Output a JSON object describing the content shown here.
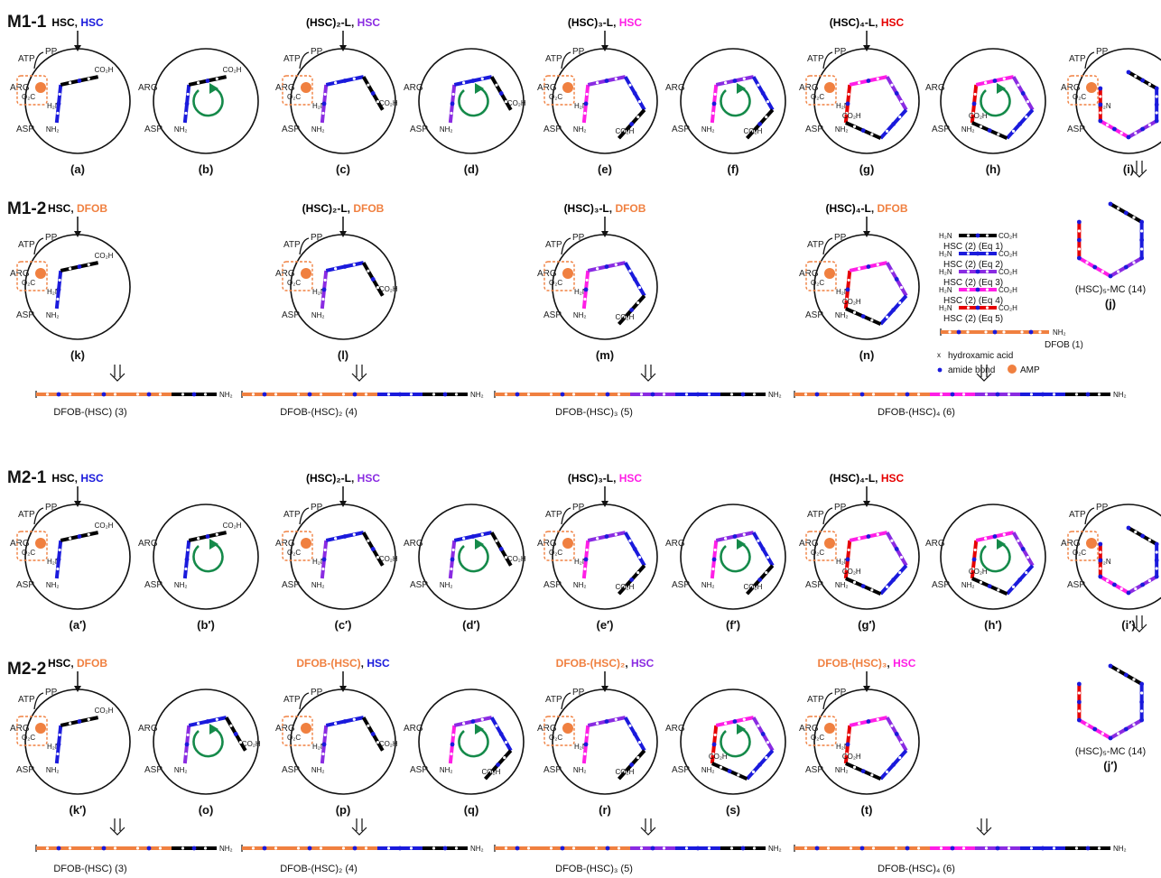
{
  "sections": [
    "M1-1",
    "M1-2",
    "M2-1",
    "M2-2"
  ],
  "colors": {
    "black": "#000000",
    "blue": "#1a1adc",
    "purple": "#8a2be2",
    "magenta": "#ff1ee6",
    "red": "#e60000",
    "orange": "#f08040",
    "green": "#158a4a",
    "dot": "#1a1adc"
  },
  "panels": [
    {
      "cap": "(a)",
      "header": [
        [
          "HSC",
          "black"
        ],
        [
          ", ",
          ""
        ],
        [
          "HSC",
          "blue"
        ]
      ],
      "enzyme": true,
      "ring": 0
    },
    {
      "cap": "(b)",
      "header": [],
      "enzyme": false,
      "ring": 0
    },
    {
      "cap": "(c)",
      "header": [
        [
          "(HSC)₂-L",
          "black"
        ],
        [
          ", ",
          ""
        ],
        [
          "HSC",
          "purple"
        ]
      ],
      "enzyme": true,
      "ring": 1
    },
    {
      "cap": "(d)",
      "header": [],
      "enzyme": false,
      "ring": 1
    },
    {
      "cap": "(e)",
      "header": [
        [
          "(HSC)₃-L",
          "black"
        ],
        [
          ", ",
          ""
        ],
        [
          "HSC",
          "magenta"
        ]
      ],
      "enzyme": true,
      "ring": 2
    },
    {
      "cap": "(f)",
      "header": [],
      "enzyme": false,
      "ring": 2
    },
    {
      "cap": "(g)",
      "header": [
        [
          "(HSC)₄-L",
          "black"
        ],
        [
          ", ",
          ""
        ],
        [
          "HSC",
          "red"
        ]
      ],
      "enzyme": true,
      "ring": 3
    },
    {
      "cap": "(h)",
      "header": [],
      "enzyme": false,
      "ring": 3
    },
    {
      "cap": "(i)",
      "header": [],
      "enzyme": true,
      "ring": 4
    },
    {
      "cap": "(k)",
      "header": [
        [
          "HSC",
          "black"
        ],
        [
          ", ",
          ""
        ],
        [
          "DFOB",
          "orange"
        ]
      ],
      "enzyme": true,
      "ring": 0
    },
    {
      "cap": "(l)",
      "header": [
        [
          "(HSC)₂-L",
          "black"
        ],
        [
          ", ",
          ""
        ],
        [
          "DFOB",
          "orange"
        ]
      ],
      "enzyme": true,
      "ring": 1
    },
    {
      "cap": "(m)",
      "header": [
        [
          "(HSC)₃-L",
          "black"
        ],
        [
          ", ",
          ""
        ],
        [
          "DFOB",
          "orange"
        ]
      ],
      "enzyme": true,
      "ring": 2
    },
    {
      "cap": "(n)",
      "header": [
        [
          "(HSC)₄-L",
          "black"
        ],
        [
          ", ",
          ""
        ],
        [
          "DFOB",
          "orange"
        ]
      ],
      "enzyme": true,
      "ring": 3
    },
    {
      "cap": "(a′)",
      "header": [
        [
          "HSC",
          "black"
        ],
        [
          ", ",
          ""
        ],
        [
          "HSC",
          "blue"
        ]
      ],
      "enzyme": true,
      "ring": 0
    },
    {
      "cap": "(b′)",
      "header": [],
      "enzyme": false,
      "ring": 0
    },
    {
      "cap": "(c′)",
      "header": [
        [
          "(HSC)₂-L",
          "black"
        ],
        [
          ", ",
          ""
        ],
        [
          "HSC",
          "purple"
        ]
      ],
      "enzyme": true,
      "ring": 1
    },
    {
      "cap": "(d′)",
      "header": [],
      "enzyme": false,
      "ring": 1
    },
    {
      "cap": "(e′)",
      "header": [
        [
          "(HSC)₃-L",
          "black"
        ],
        [
          ", ",
          ""
        ],
        [
          "HSC",
          "magenta"
        ]
      ],
      "enzyme": true,
      "ring": 2
    },
    {
      "cap": "(f′)",
      "header": [],
      "enzyme": false,
      "ring": 2
    },
    {
      "cap": "(g′)",
      "header": [
        [
          "(HSC)₄-L",
          "black"
        ],
        [
          ", ",
          ""
        ],
        [
          "HSC",
          "red"
        ]
      ],
      "enzyme": true,
      "ring": 3
    },
    {
      "cap": "(h′)",
      "header": [],
      "enzyme": false,
      "ring": 3
    },
    {
      "cap": "(i′)",
      "header": [],
      "enzyme": true,
      "ring": 4
    },
    {
      "cap": "(k′)",
      "header": [
        [
          "HSC",
          "black"
        ],
        [
          ", ",
          ""
        ],
        [
          "DFOB",
          "orange"
        ]
      ],
      "enzyme": true,
      "ring": 0
    },
    {
      "cap": "(o)",
      "header": [],
      "enzyme": false,
      "ring": 1
    },
    {
      "cap": "(p)",
      "header": [
        [
          "DFOB-(HSC)",
          "orange"
        ],
        [
          ", ",
          ""
        ],
        [
          "HSC",
          "blue"
        ]
      ],
      "enzyme": true,
      "ring": 1
    },
    {
      "cap": "(q)",
      "header": [],
      "enzyme": false,
      "ring": 2
    },
    {
      "cap": "(r)",
      "header": [
        [
          "DFOB-(HSC)₂",
          "orange"
        ],
        [
          ", ",
          ""
        ],
        [
          "HSC",
          "purple"
        ]
      ],
      "enzyme": true,
      "ring": 2
    },
    {
      "cap": "(s)",
      "header": [],
      "enzyme": false,
      "ring": 3
    },
    {
      "cap": "(t)",
      "header": [
        [
          "DFOB-(HSC)₃",
          "orange"
        ],
        [
          ", ",
          ""
        ],
        [
          "HSC",
          "magenta"
        ]
      ],
      "enzyme": true,
      "ring": 3
    }
  ],
  "labels": {
    "atp": "ATP",
    "ppi": "PP",
    "ppi_sub": "i",
    "arg": "ARG",
    "asp": "ASP",
    "o2c": "O₂C",
    "h2n": "H₂N",
    "co2h": "CO₂H",
    "nh2": "NH₂",
    "ho2c": "HO₂C",
    "x": "x"
  },
  "products": [
    "DFOB-(HSC) (3)",
    "DFOB-(HSC)₂ (4)",
    "DFOB-(HSC)₃ (5)",
    "DFOB-(HSC)₄ (6)"
  ],
  "macrocycle": {
    "label": "(HSC)₅-MC (14)",
    "cap1": "(j)",
    "cap2": "(j′)"
  },
  "legend": [
    {
      "text": "HSC (2) (Eq 1)",
      "color": "black"
    },
    {
      "text": "HSC (2) (Eq 2)",
      "color": "blue"
    },
    {
      "text": "HSC (2) (Eq 3)",
      "color": "purple"
    },
    {
      "text": "HSC (2) (Eq 4)",
      "color": "magenta"
    },
    {
      "text": "HSC (2) (Eq 5)",
      "color": "red"
    }
  ],
  "legend_dfob": "DFOB (1)",
  "legend_hydroxamic": "hydroxamic acid",
  "legend_amide": "amide bond",
  "legend_amp": "AMP"
}
